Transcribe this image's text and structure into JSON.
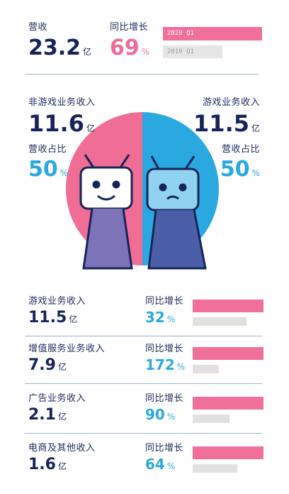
{
  "header": {
    "revenue_label": "营收",
    "revenue_value": "23.2",
    "revenue_unit": "亿",
    "growth_label": "同比增长",
    "growth_value": "69",
    "growth_unit": "%",
    "legend_2020": "2020 Q1",
    "legend_2019": "2019 Q1"
  },
  "split": {
    "non_game_label": "非游戏业务收入",
    "non_game_value": "11.6",
    "non_game_unit": "亿",
    "non_game_share_label": "营收占比",
    "non_game_share": "50",
    "game_label": "游戏业务收入",
    "game_value": "11.5",
    "game_unit": "亿",
    "game_share_label": "营收占比",
    "game_share": "50",
    "share_unit": "%"
  },
  "segments": [
    {
      "name": "游戏业务收入",
      "value": "11.5",
      "unit": "亿",
      "growth_label": "同比增长",
      "growth": "32",
      "growth_unit": "%"
    },
    {
      "name": "增值服务业务收入",
      "value": "7.9",
      "unit": "亿",
      "growth_label": "同比增长",
      "growth": "172",
      "growth_unit": "%"
    },
    {
      "name": "广告业务收入",
      "value": "2.1",
      "unit": "亿",
      "growth_label": "同比增长",
      "growth": "90",
      "growth_unit": "%"
    },
    {
      "name": "电商及其他收入",
      "value": "1.6",
      "unit": "亿",
      "growth_label": "同比增长",
      "growth": "64",
      "growth_unit": "%"
    }
  ],
  "colors": {
    "pink": "#f06d95",
    "blue": "#2aa9e0",
    "grey": "#e1e1e1",
    "navy": "#16245a"
  },
  "chart_data": [
    {
      "type": "pie",
      "categories": [
        "非游戏业务收入",
        "游戏业务收入"
      ],
      "values": [
        50,
        50
      ],
      "amounts": [
        11.6,
        11.5
      ]
    },
    {
      "type": "bar",
      "categories": [
        "营收",
        "游戏业务收入",
        "增值服务业务收入",
        "广告业务收入",
        "电商及其他收入"
      ],
      "series": [
        {
          "name": "2020 Q1",
          "values": [
            23.2,
            11.5,
            7.9,
            2.1,
            1.6
          ]
        },
        {
          "name": "2019 Q1",
          "values": [
            13.7,
            8.7,
            2.9,
            1.1,
            1.0
          ]
        }
      ],
      "growth_percent": [
        69,
        32,
        172,
        90,
        64
      ]
    }
  ]
}
